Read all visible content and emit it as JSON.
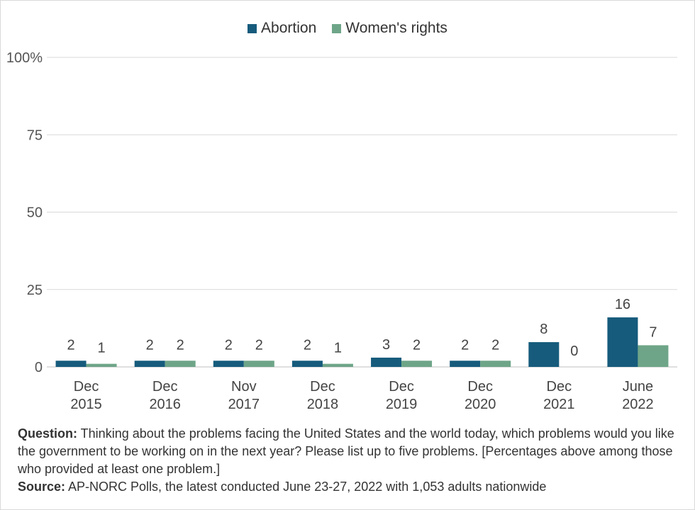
{
  "chart_data": {
    "type": "bar",
    "categories": [
      [
        "Dec",
        "2015"
      ],
      [
        "Dec",
        "2016"
      ],
      [
        "Nov",
        "2017"
      ],
      [
        "Dec",
        "2018"
      ],
      [
        "Dec",
        "2019"
      ],
      [
        "Dec",
        "2020"
      ],
      [
        "Dec",
        "2021"
      ],
      [
        "June",
        "2022"
      ]
    ],
    "series": [
      {
        "name": "Abortion",
        "color": "#165b7c",
        "values": [
          2,
          2,
          2,
          2,
          3,
          2,
          8,
          16
        ]
      },
      {
        "name": "Women's rights",
        "color": "#6ea588",
        "values": [
          1,
          2,
          2,
          1,
          2,
          2,
          0,
          7
        ]
      }
    ],
    "yticks": [
      "0",
      "25",
      "50",
      "75",
      "100%"
    ],
    "ytick_values": [
      0,
      25,
      50,
      75,
      100
    ],
    "ylim": [
      0,
      100
    ],
    "grid": true,
    "legend": "top-center"
  },
  "notes": {
    "question_label": "Question:",
    "question_text": " Thinking about the problems facing the United States and the world today, which problems would you like the government to be working on in the next year? Please list up to five problems. [Percentages above among those who provided at least one problem.]",
    "source_label": "Source:",
    "source_text": " AP-NORC Polls, the latest conducted June 23-27, 2022 with 1,053 adults nationwide"
  }
}
